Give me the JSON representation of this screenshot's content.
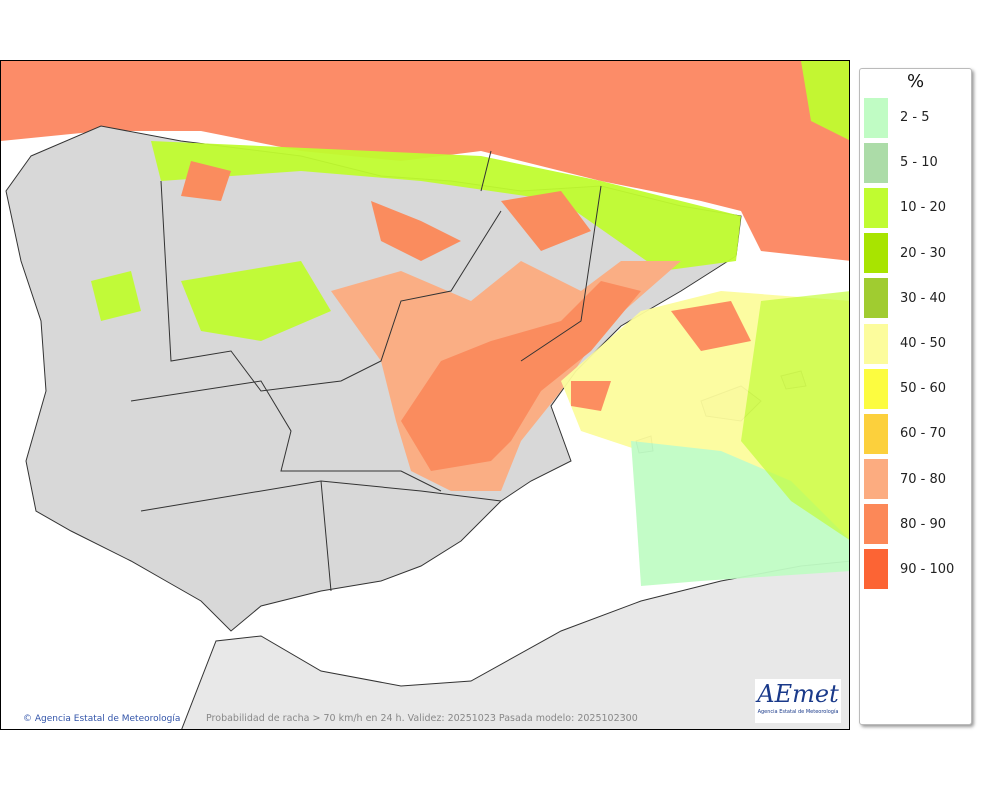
{
  "map": {
    "credit": "Agencia Estatal de Meteorología",
    "caption": "Probabilidad de racha > 70 km/h en 24 h. Validez: 20251023 Pasada modelo: 2025102300",
    "logo_text": "AEmet",
    "logo_subtext": "Agencia Estatal de Meteorología",
    "copyright_icon": "copyright-icon"
  },
  "legend": {
    "title": "%",
    "items": [
      {
        "label": "2 - 5",
        "color": "#c0fcc4"
      },
      {
        "label": "5 - 10",
        "color": "#acdca8"
      },
      {
        "label": "10 - 20",
        "color": "#c0fc30"
      },
      {
        "label": "20 - 30",
        "color": "#a8e400"
      },
      {
        "label": "30 - 40",
        "color": "#a0cc30"
      },
      {
        "label": "40 - 50",
        "color": "#fcfc9c"
      },
      {
        "label": "50 - 60",
        "color": "#fcfc40"
      },
      {
        "label": "60 - 70",
        "color": "#fcd03c"
      },
      {
        "label": "70 - 80",
        "color": "#fcac80"
      },
      {
        "label": "80 - 90",
        "color": "#fc8858"
      },
      {
        "label": "90 - 100",
        "color": "#fc6434"
      }
    ]
  }
}
